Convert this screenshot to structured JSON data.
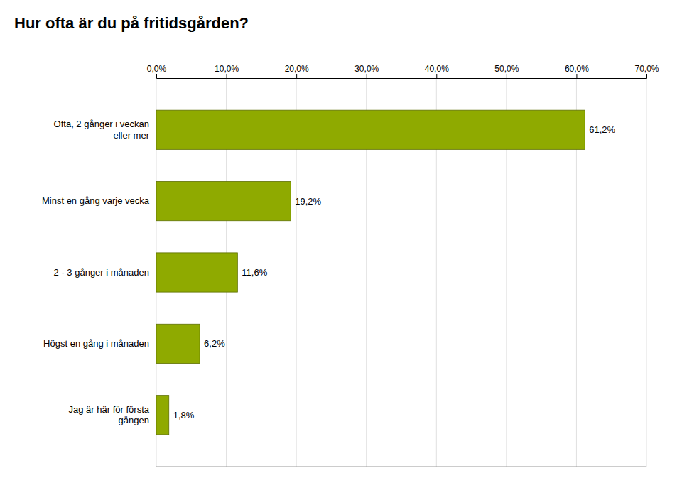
{
  "chart_data": {
    "type": "bar",
    "orientation": "horizontal",
    "title": "Hur ofta är du på fritidsgården?",
    "categories": [
      "Ofta, 2 gånger i veckan\neller mer",
      "Minst en gång varje vecka",
      "2 - 3 gånger i månaden",
      "Högst en gång i månaden",
      "Jag är här för första\ngången"
    ],
    "values": [
      61.2,
      19.2,
      11.6,
      6.2,
      1.8
    ],
    "value_labels": [
      "61,2%",
      "19,2%",
      "11,6%",
      "6,2%",
      "1,8%"
    ],
    "data_labels": true,
    "color": "#8faa00",
    "xlim": [
      0,
      70
    ],
    "xticks": [
      {
        "value": 0,
        "label": "0,0%"
      },
      {
        "value": 10,
        "label": "10,0%"
      },
      {
        "value": 20,
        "label": "20,0%"
      },
      {
        "value": 30,
        "label": "30,0%"
      },
      {
        "value": 40,
        "label": "40,0%"
      },
      {
        "value": 50,
        "label": "50,0%"
      },
      {
        "value": 60,
        "label": "60,0%"
      },
      {
        "value": 70,
        "label": "70,0%"
      }
    ],
    "grid": true
  }
}
